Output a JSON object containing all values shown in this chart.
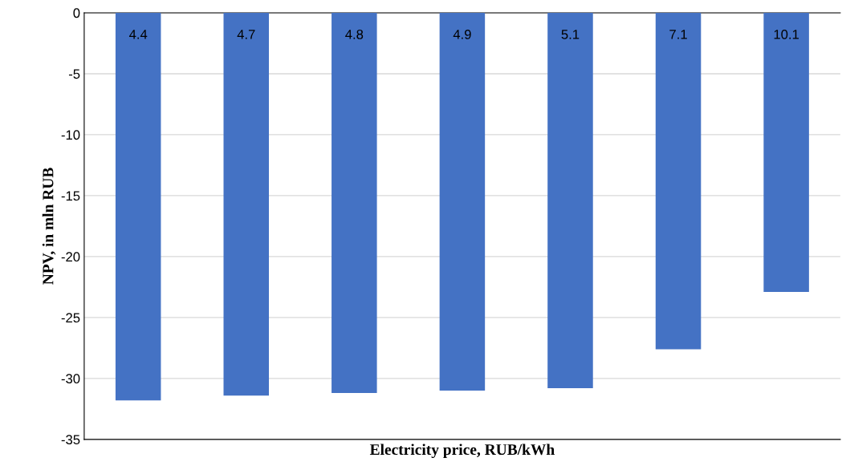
{
  "chart_data": {
    "type": "bar",
    "xlabel": "Electricity price, RUB/kWh",
    "ylabel": "NPV, in mln RUB",
    "categories": [
      "4.4",
      "4.7",
      "4.8",
      "4.9",
      "5.1",
      "7.1",
      "10.1"
    ],
    "values": [
      -31.8,
      -31.4,
      -31.2,
      -31.0,
      -30.8,
      -27.6,
      -22.9
    ],
    "color": "#4472c4",
    "ylim": [
      -35,
      0
    ],
    "yticks": [
      -35,
      -30,
      -25,
      -20,
      -15,
      -10,
      -5,
      0
    ],
    "grid": "y"
  }
}
